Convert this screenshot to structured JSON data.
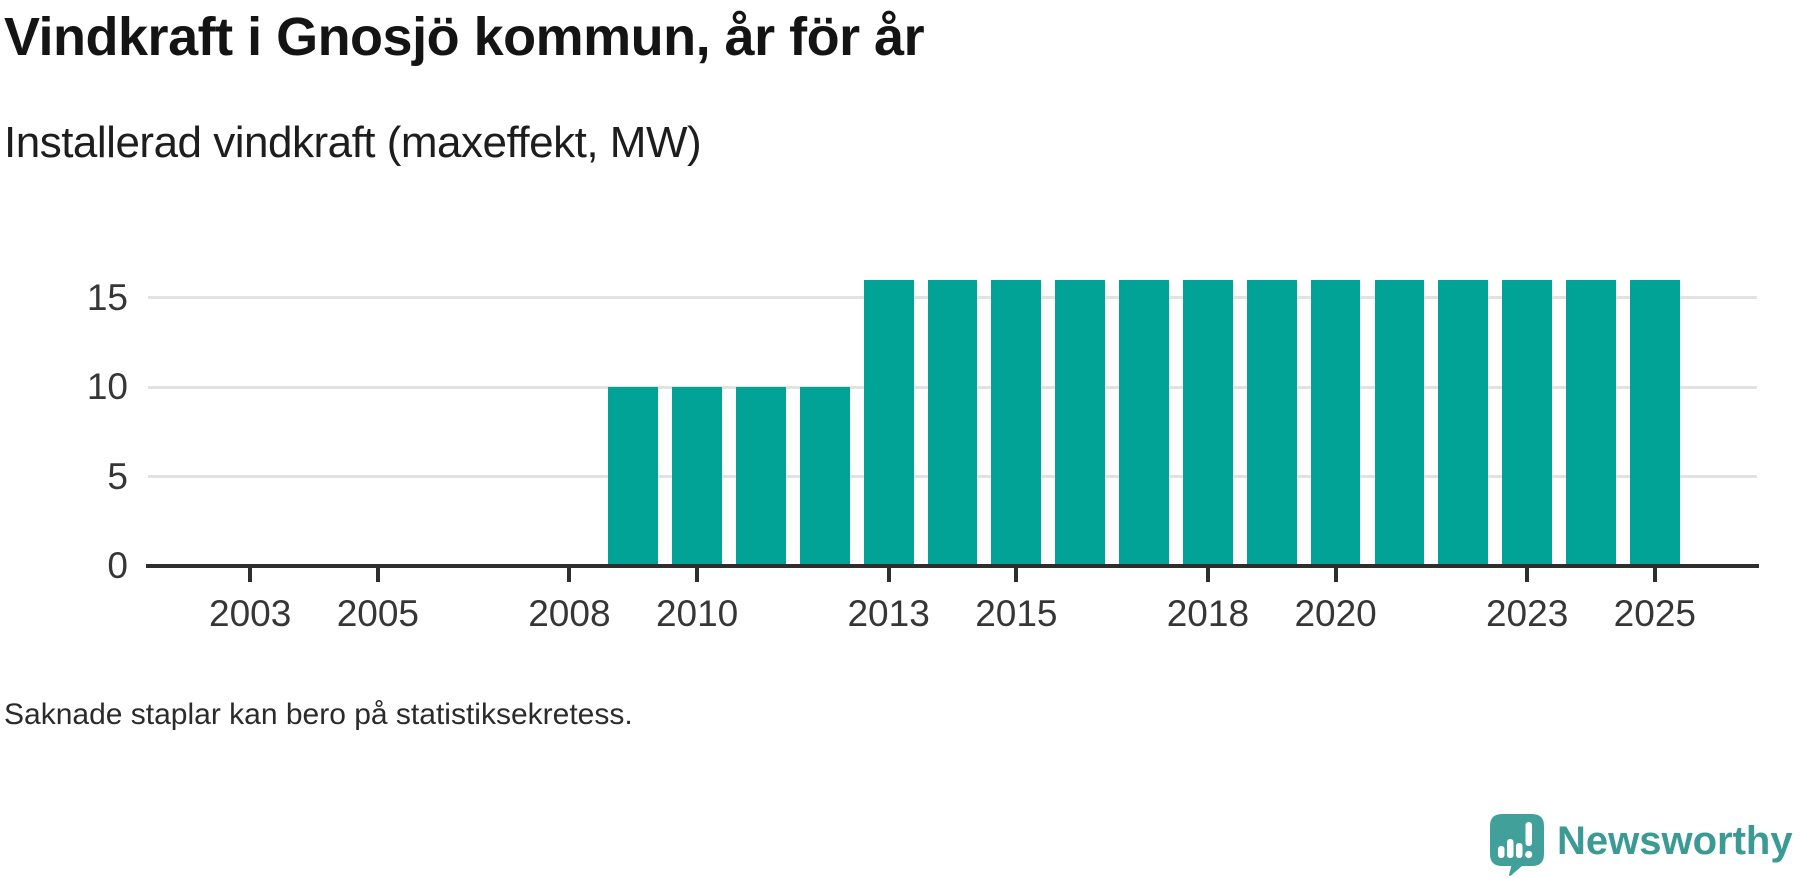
{
  "page": {
    "title": "Vindkraft i Gnosjö kommun, år för år",
    "subtitle": "Installerad vindkraft (maxeffekt, MW)",
    "footnote": "Saknade staplar kan bero på statistiksekretess."
  },
  "branding": {
    "logo_text": "Newsworthy",
    "logo_icon": "newsworthy-chart-speech-bubble-icon",
    "logo_icon_color": "#41a19a",
    "logo_text_color": "#3b9a94"
  },
  "chart_data": {
    "type": "bar",
    "title": "Vindkraft i Gnosjö kommun, år för år",
    "subtitle": "Installerad vindkraft (maxeffekt, MW)",
    "unit": "MW",
    "x": [
      2009,
      2010,
      2011,
      2012,
      2013,
      2014,
      2015,
      2016,
      2017,
      2018,
      2019,
      2020,
      2021,
      2022,
      2023,
      2024,
      2025
    ],
    "values": [
      10,
      10,
      10,
      10,
      16,
      16,
      16,
      16,
      16,
      16,
      16,
      16,
      16,
      16,
      16,
      16,
      16
    ],
    "years_without_bars": [
      2002,
      2003,
      2004,
      2005,
      2006,
      2007,
      2008
    ],
    "bar_color": "#00a396",
    "x_tick_labels": [
      "2003",
      "2005",
      "2008",
      "2010",
      "2013",
      "2015",
      "2018",
      "2020",
      "2023",
      "2025"
    ],
    "y_tick_labels": [
      "0",
      "5",
      "10",
      "15"
    ],
    "y_gridlines": [
      5,
      10,
      15
    ],
    "xlim": [
      2001.4,
      2026.6
    ],
    "ylim": [
      0,
      17.1
    ],
    "bar_width_years": 0.78,
    "grid": "horizontal-only",
    "legend": "none",
    "axis_color": "#2e2e2e",
    "gridline_color": "#e2e2e2",
    "tick_text_color": "#363636"
  }
}
